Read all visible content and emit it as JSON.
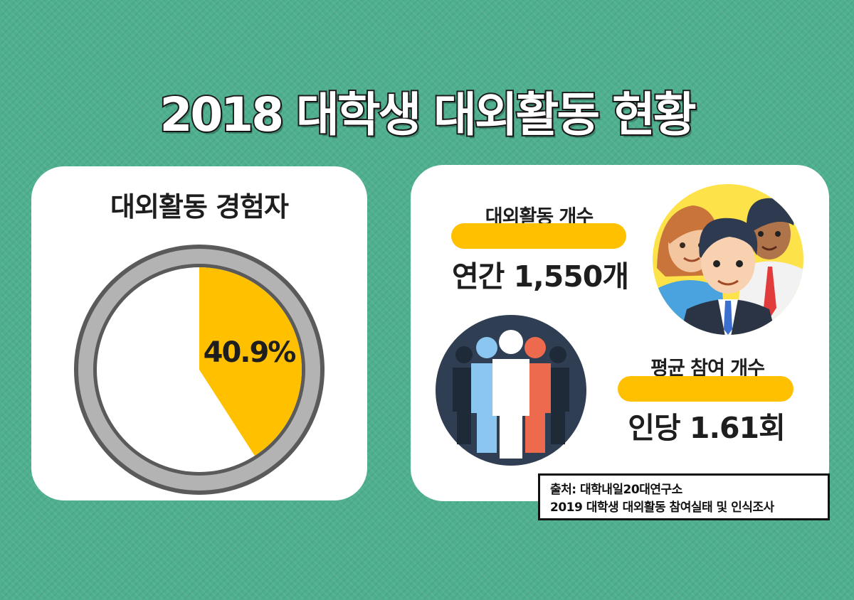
{
  "title": "2018 대학생 대외활동 현황",
  "chart_data": {
    "type": "pie",
    "title": "대외활동 경험자",
    "values": [
      40.9,
      59.1
    ],
    "value_label": "40.9%",
    "colors": {
      "highlight": "#ffc000",
      "rest": "#ffffff",
      "ring": "#b3b3b3",
      "ring_border": "#5a5a5a"
    }
  },
  "stats": [
    {
      "label": "대외활동 개수",
      "value": "연간 1,550개"
    },
    {
      "label": "평균 참여 개수",
      "value": "인당 1.61회"
    }
  ],
  "source": {
    "line1": "출처: 대학내일20대연구소",
    "line2": "2019 대학생 대외활동 참여실태 및 인식조사"
  },
  "icons": [
    "business-people-icon",
    "crowd-icon"
  ],
  "colors": {
    "background": "#4fb08f",
    "accent": "#ffc000"
  }
}
